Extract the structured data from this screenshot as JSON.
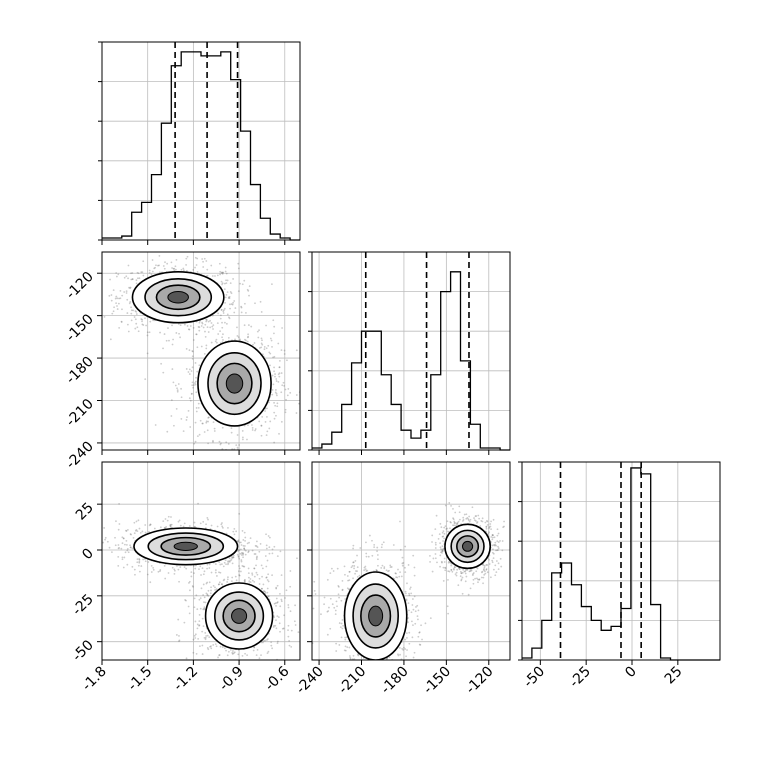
{
  "chart_data": {
    "type": "corner",
    "title": "",
    "parameters": [
      {
        "label": "",
        "ticks": [
          "-1.8",
          "-1.5",
          "-1.2",
          "-0.9",
          "-0.6"
        ],
        "range": [
          -1.8,
          -0.5
        ],
        "quantiles": [
          -1.32,
          -1.11,
          -0.91
        ]
      },
      {
        "label": "",
        "ticks": [
          "-240",
          "-210",
          "-180",
          "-150",
          "-120"
        ],
        "range": [
          -245,
          -105
        ],
        "quantiles": [
          -207,
          -164,
          -134
        ]
      },
      {
        "label": "",
        "ticks": [
          "-50",
          "-25",
          "0",
          "25"
        ],
        "range": [
          -60,
          48
        ],
        "quantiles": [
          -39,
          -6,
          5
        ]
      }
    ],
    "histograms": [
      {
        "param": 0,
        "bin_start": -1.8,
        "bin_width": 0.065,
        "counts": [
          0.01,
          0.01,
          0.02,
          0.14,
          0.19,
          0.33,
          0.59,
          0.88,
          0.95,
          0.95,
          0.93,
          0.93,
          0.95,
          0.81,
          0.55,
          0.28,
          0.11,
          0.03,
          0.01,
          0.0
        ]
      },
      {
        "param": 1,
        "bin_start": -245,
        "bin_width": 7,
        "counts": [
          0.01,
          0.03,
          0.09,
          0.23,
          0.44,
          0.6,
          0.6,
          0.38,
          0.23,
          0.1,
          0.06,
          0.1,
          0.38,
          0.8,
          0.9,
          0.45,
          0.13,
          0.01,
          0.01,
          0.0
        ]
      },
      {
        "param": 2,
        "bin_start": -60,
        "bin_width": 5.4,
        "counts": [
          0.01,
          0.06,
          0.2,
          0.44,
          0.49,
          0.38,
          0.27,
          0.2,
          0.15,
          0.17,
          0.26,
          0.97,
          0.94,
          0.28,
          0.01,
          0.0,
          0.0,
          0.0,
          0.0,
          0.0
        ]
      }
    ],
    "modes_2d": [
      {
        "x_param": 0,
        "y_param": 1,
        "centers": [
          {
            "x": -1.3,
            "y": -137,
            "sx": 0.15,
            "sy": 9
          },
          {
            "x": -0.93,
            "y": -198,
            "sx": 0.12,
            "sy": 15
          }
        ]
      },
      {
        "x_param": 0,
        "y_param": 2,
        "centers": [
          {
            "x": -1.25,
            "y": 2,
            "sx": 0.17,
            "sy": 5
          },
          {
            "x": -0.9,
            "y": -36,
            "sx": 0.11,
            "sy": 9
          }
        ]
      },
      {
        "x_param": 1,
        "y_param": 2,
        "centers": [
          {
            "x": -135,
            "y": 2,
            "sx": 8,
            "sy": 6
          },
          {
            "x": -200,
            "y": -36,
            "sx": 11,
            "sy": 12
          }
        ]
      }
    ],
    "grid": true
  }
}
